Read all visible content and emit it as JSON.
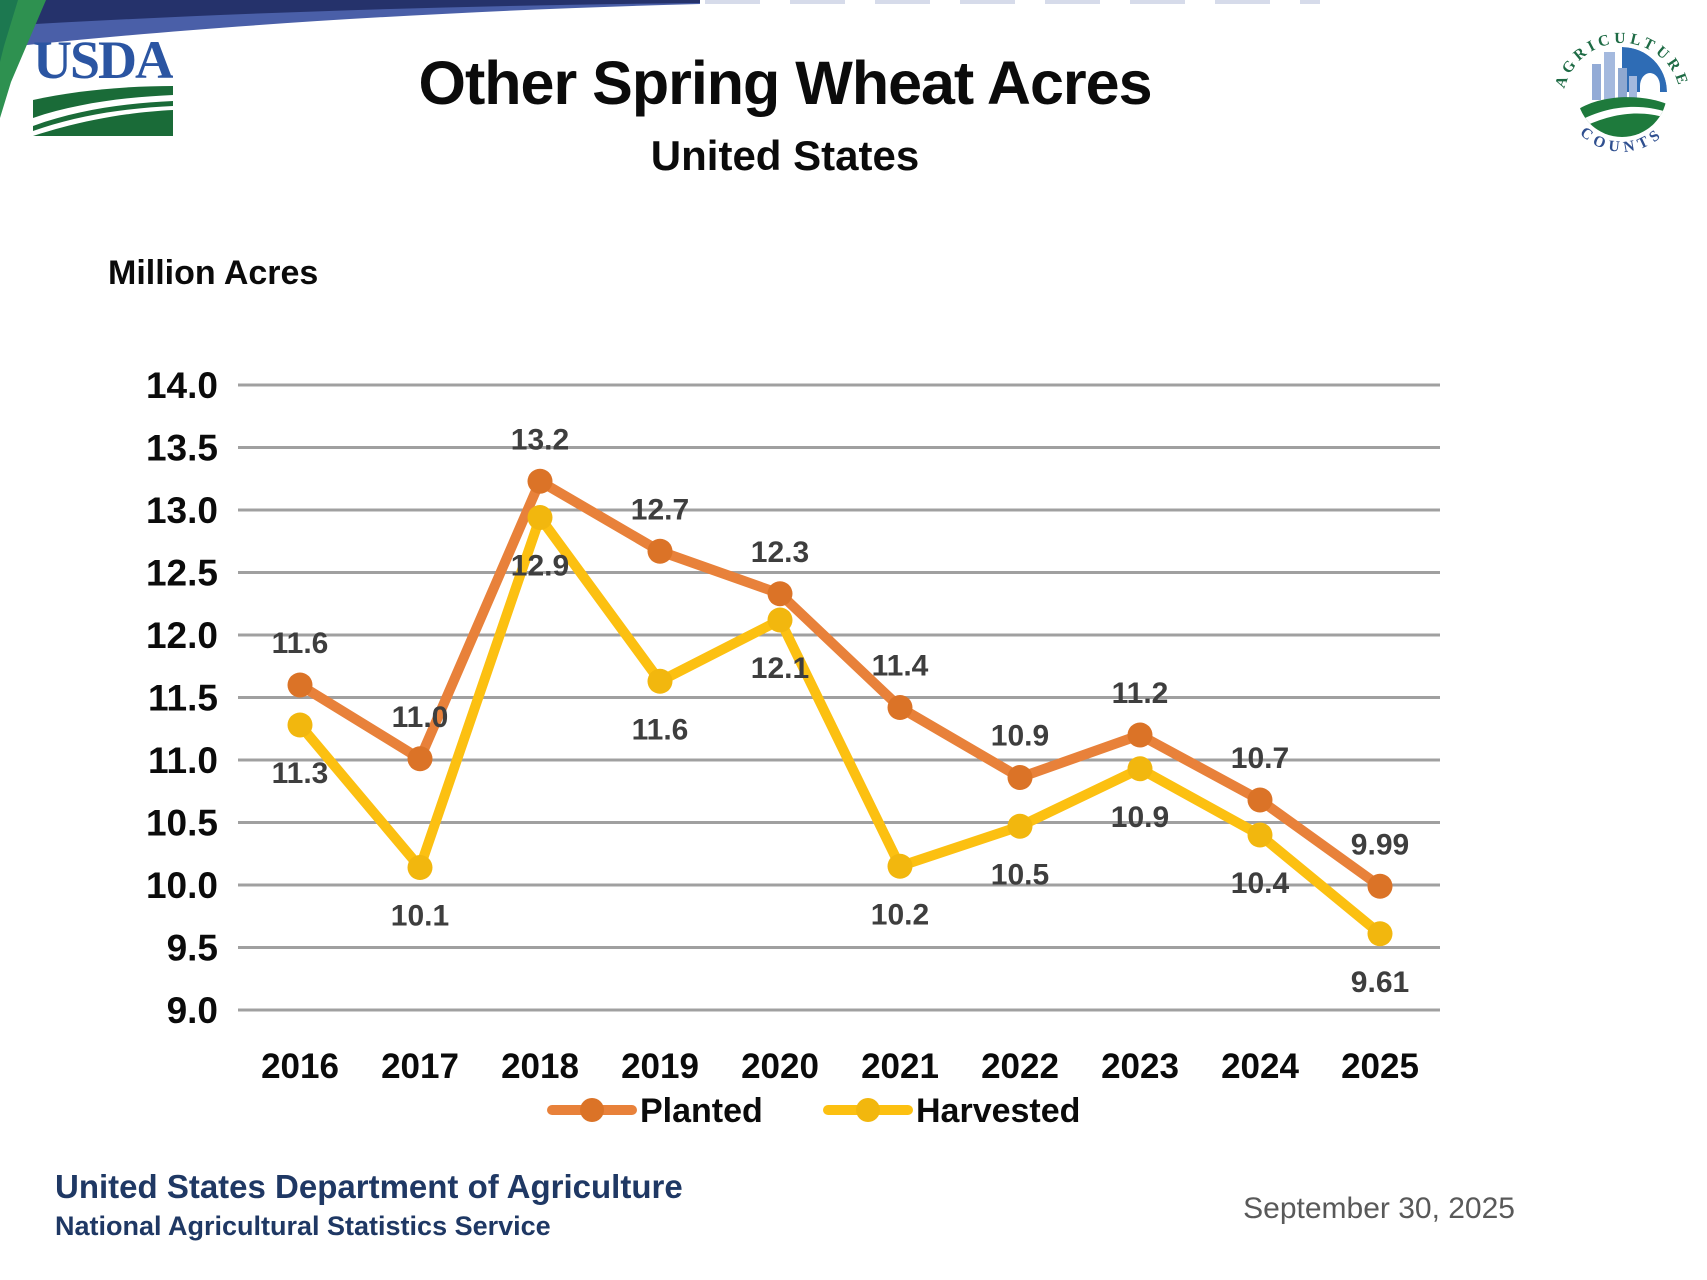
{
  "banner": {
    "usda_wordmark": "USDA",
    "colors": {
      "band_navy": "#25326b",
      "band_blue": "#4a5fa8",
      "wedge_green": "#2e9150",
      "usda_blue": "#2b55a2",
      "usda_field_green": "#1a6b38"
    }
  },
  "ag_counts_logo": {
    "arc_top": "AGRICULTURE",
    "arc_bottom": "COUNTS"
  },
  "header": {
    "title": "Other Spring Wheat Acres",
    "subtitle": "United States"
  },
  "chart_data": {
    "type": "line",
    "unit_label": "Million Acres",
    "categories": [
      "2016",
      "2017",
      "2018",
      "2019",
      "2020",
      "2021",
      "2022",
      "2023",
      "2024",
      "2025"
    ],
    "ylim": [
      9.0,
      14.0
    ],
    "ytick_step": 0.5,
    "grid": true,
    "grid_color": "#a0a0a0",
    "legend_position": "bottom",
    "series": [
      {
        "name": "Planted",
        "color": "#e8813a",
        "marker_color": "#db7327",
        "label_side": "above",
        "values": [
          11.6,
          11.01,
          13.23,
          12.67,
          12.33,
          11.42,
          10.86,
          11.2,
          10.68,
          9.99
        ],
        "labels": [
          "11.6",
          "11.0",
          "13.2",
          "12.7",
          "12.3",
          "11.4",
          "10.9",
          "11.2",
          "10.7",
          "9.99"
        ]
      },
      {
        "name": "Harvested",
        "color": "#fcc011",
        "marker_color": "#f2b70e",
        "label_side": "below",
        "values": [
          11.28,
          10.14,
          12.94,
          11.63,
          12.12,
          10.15,
          10.47,
          10.93,
          10.4,
          9.61
        ],
        "labels": [
          "11.3",
          "10.1",
          "12.9",
          "11.6",
          "12.1",
          "10.2",
          "10.5",
          "10.9",
          "10.4",
          "9.61"
        ]
      }
    ]
  },
  "footer": {
    "org_line1": "United States Department of Agriculture",
    "org_line2": "National Agricultural Statistics Service",
    "date": "September 30, 2025"
  }
}
